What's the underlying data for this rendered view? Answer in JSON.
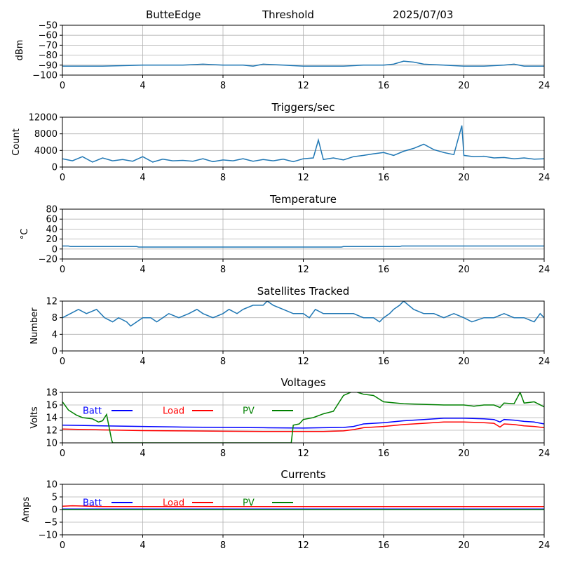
{
  "header": {
    "station": "ButteEdge",
    "mode": "Threshold",
    "date": "2025/07/03"
  },
  "colors": {
    "series_default": "#1f77b4",
    "batt": "#0000ff",
    "load": "#ff0000",
    "pv": "#008000",
    "grid": "#b0b0b0"
  },
  "chart_data": [
    {
      "id": "threshold",
      "type": "line",
      "title": "",
      "ylabel": "dBm",
      "xlim": [
        0,
        24
      ],
      "ylim": [
        -100,
        -50
      ],
      "xticks": [
        0,
        4,
        8,
        12,
        16,
        20,
        24
      ],
      "yticks": [
        -100,
        -90,
        -80,
        -70,
        -60,
        -50
      ],
      "grid": true,
      "series": [
        {
          "x": [
            0,
            2,
            4,
            6,
            7,
            8,
            9,
            9.5,
            10,
            11,
            12,
            13,
            14,
            15,
            16,
            16.5,
            17,
            17.5,
            18,
            19,
            20,
            21,
            22,
            22.5,
            23,
            24
          ],
          "y": [
            -91,
            -91,
            -90,
            -90,
            -89,
            -90,
            -90,
            -91,
            -89,
            -90,
            -91,
            -91,
            -91,
            -90,
            -90,
            -89,
            -86,
            -87,
            -89,
            -90,
            -91,
            -91,
            -90,
            -89,
            -91,
            -91
          ]
        }
      ]
    },
    {
      "id": "triggers",
      "type": "line",
      "title": "Triggers/sec",
      "ylabel": "Count",
      "xlim": [
        0,
        24
      ],
      "ylim": [
        0,
        12000
      ],
      "xticks": [
        0,
        4,
        8,
        12,
        16,
        20,
        24
      ],
      "yticks": [
        0,
        4000,
        8000,
        12000
      ],
      "grid": true,
      "series": [
        {
          "x": [
            0,
            0.5,
            1,
            1.5,
            2,
            2.5,
            3,
            3.5,
            4,
            4.5,
            5,
            5.5,
            6,
            6.5,
            7,
            7.5,
            8,
            8.5,
            9,
            9.5,
            10,
            10.5,
            11,
            11.5,
            12,
            12.5,
            12.75,
            13,
            13.5,
            14,
            14.5,
            15,
            15.5,
            16,
            16.5,
            17,
            17.5,
            18,
            18.5,
            19,
            19.5,
            19.9,
            20,
            20.5,
            21,
            21.5,
            22,
            22.5,
            23,
            23.5,
            24
          ],
          "y": [
            2000,
            1500,
            2500,
            1200,
            2200,
            1500,
            1800,
            1400,
            2500,
            1200,
            1900,
            1500,
            1600,
            1400,
            2000,
            1300,
            1700,
            1500,
            2000,
            1400,
            1800,
            1500,
            1900,
            1300,
            2000,
            2200,
            6500,
            1800,
            2200,
            1700,
            2500,
            2800,
            3200,
            3500,
            2800,
            3800,
            4500,
            5500,
            4200,
            3500,
            3000,
            10000,
            2800,
            2500,
            2600,
            2200,
            2300,
            2000,
            2200,
            1900,
            2000
          ]
        }
      ]
    },
    {
      "id": "temperature",
      "type": "line",
      "title": "Temperature",
      "ylabel": "°C",
      "xlim": [
        0,
        24
      ],
      "ylim": [
        -20,
        80
      ],
      "xticks": [
        0,
        4,
        8,
        12,
        16,
        20,
        24
      ],
      "yticks": [
        -20,
        0,
        20,
        40,
        60,
        80
      ],
      "grid": true,
      "series": [
        {
          "x": [
            0,
            0.3,
            0.4,
            3.7,
            3.8,
            13.9,
            14,
            16.8,
            16.9,
            24
          ],
          "y": [
            6,
            6,
            5,
            5,
            4,
            4,
            5,
            5,
            6,
            6
          ]
        }
      ]
    },
    {
      "id": "satellites",
      "type": "line",
      "title": "Satellites Tracked",
      "ylabel": "Number",
      "xlim": [
        0,
        24
      ],
      "ylim": [
        0,
        12
      ],
      "xticks": [
        0,
        4,
        8,
        12,
        16,
        20,
        24
      ],
      "yticks": [
        0,
        4,
        8,
        12
      ],
      "grid": true,
      "series": [
        {
          "x": [
            0,
            0.4,
            0.8,
            1.2,
            1.7,
            2.1,
            2.5,
            2.8,
            3.2,
            3.4,
            3.7,
            4.0,
            4.4,
            4.7,
            5.0,
            5.3,
            5.8,
            6.3,
            6.7,
            7.0,
            7.5,
            8.0,
            8.3,
            8.7,
            9.0,
            9.5,
            10.0,
            10.2,
            10.5,
            11.0,
            11.5,
            12.0,
            12.3,
            12.6,
            13.0,
            13.5,
            14.0,
            14.5,
            15.0,
            15.5,
            15.8,
            16.0,
            16.3,
            16.5,
            16.8,
            17.0,
            17.5,
            18.0,
            18.5,
            19.0,
            19.5,
            20.0,
            20.4,
            21.0,
            21.5,
            22.0,
            22.5,
            23.0,
            23.5,
            23.8,
            24
          ],
          "y": [
            8,
            9,
            10,
            9,
            10,
            8,
            7,
            8,
            7,
            6,
            7,
            8,
            8,
            7,
            8,
            9,
            8,
            9,
            10,
            9,
            8,
            9,
            10,
            9,
            10,
            11,
            11,
            12,
            11,
            10,
            9,
            9,
            8,
            10,
            9,
            9,
            9,
            9,
            8,
            8,
            7,
            8,
            9,
            10,
            11,
            12,
            10,
            9,
            9,
            8,
            9,
            8,
            7,
            8,
            8,
            9,
            8,
            8,
            7,
            9,
            8
          ]
        }
      ]
    },
    {
      "id": "voltages",
      "type": "line",
      "title": "Voltages",
      "ylabel": "Volts",
      "xlim": [
        0,
        24
      ],
      "ylim": [
        10,
        18
      ],
      "xticks": [
        0,
        4,
        8,
        12,
        16,
        20,
        24
      ],
      "yticks": [
        10,
        12,
        14,
        16,
        18
      ],
      "grid": true,
      "legend_position": "top-left",
      "series": [
        {
          "name": "Batt",
          "color": "batt",
          "x": [
            0,
            2,
            4,
            6,
            8,
            10,
            12,
            13,
            14,
            14.5,
            15,
            16,
            17,
            18,
            19,
            20,
            21,
            21.5,
            21.8,
            22,
            22.5,
            23,
            23.5,
            24
          ],
          "y": [
            12.8,
            12.7,
            12.6,
            12.5,
            12.45,
            12.4,
            12.35,
            12.4,
            12.45,
            12.6,
            13.0,
            13.2,
            13.5,
            13.7,
            13.9,
            13.9,
            13.8,
            13.7,
            13.3,
            13.7,
            13.6,
            13.4,
            13.3,
            13.0
          ]
        },
        {
          "name": "Load",
          "color": "load",
          "x": [
            0,
            2,
            4,
            6,
            8,
            10,
            12,
            13,
            14,
            14.5,
            15,
            16,
            17,
            18,
            19,
            20,
            21,
            21.5,
            21.8,
            22,
            22.5,
            23,
            23.5,
            24
          ],
          "y": [
            12.2,
            12.05,
            11.95,
            11.9,
            11.85,
            11.8,
            11.8,
            11.8,
            11.9,
            12.1,
            12.4,
            12.6,
            12.9,
            13.1,
            13.3,
            13.3,
            13.2,
            13.1,
            12.5,
            13.0,
            12.9,
            12.7,
            12.6,
            12.4
          ]
        },
        {
          "name": "PV",
          "color": "pv",
          "x": [
            0,
            0.3,
            0.7,
            1.0,
            1.5,
            1.8,
            2.0,
            2.2,
            2.45,
            2.5,
            11.4,
            11.5,
            11.8,
            12.0,
            12.5,
            13.0,
            13.5,
            14.0,
            14.5,
            15.0,
            15.5,
            16.0,
            17.0,
            18.0,
            19.0,
            20.0,
            20.5,
            21.0,
            21.5,
            21.8,
            22.0,
            22.5,
            22.8,
            23.0,
            23.5,
            24
          ],
          "y": [
            16.5,
            15.2,
            14.4,
            14.0,
            13.8,
            13.3,
            13.5,
            14.5,
            10.5,
            10,
            10,
            12.8,
            13.0,
            13.7,
            14.0,
            14.6,
            15.0,
            17.5,
            18.2,
            17.7,
            17.5,
            16.5,
            16.2,
            16.1,
            16.0,
            16.0,
            15.8,
            16.0,
            16.0,
            15.6,
            16.3,
            16.2,
            18.0,
            16.3,
            16.5,
            15.7
          ]
        }
      ]
    },
    {
      "id": "currents",
      "type": "line",
      "title": "Currents",
      "ylabel": "Amps",
      "xlim": [
        0,
        24
      ],
      "ylim": [
        -10,
        10
      ],
      "xticks": [
        0,
        4,
        8,
        12,
        16,
        20,
        24
      ],
      "yticks": [
        -10,
        -5,
        0,
        5,
        10
      ],
      "grid": true,
      "legend_position": "top-left",
      "series": [
        {
          "name": "Batt",
          "color": "batt",
          "x": [
            0,
            24
          ],
          "y": [
            0.2,
            0.2
          ]
        },
        {
          "name": "Load",
          "color": "load",
          "x": [
            0,
            0.5,
            2,
            24
          ],
          "y": [
            1.3,
            1.5,
            1.2,
            1.2
          ]
        },
        {
          "name": "PV",
          "color": "pv",
          "x": [
            0,
            24
          ],
          "y": [
            0,
            0
          ]
        }
      ]
    }
  ]
}
